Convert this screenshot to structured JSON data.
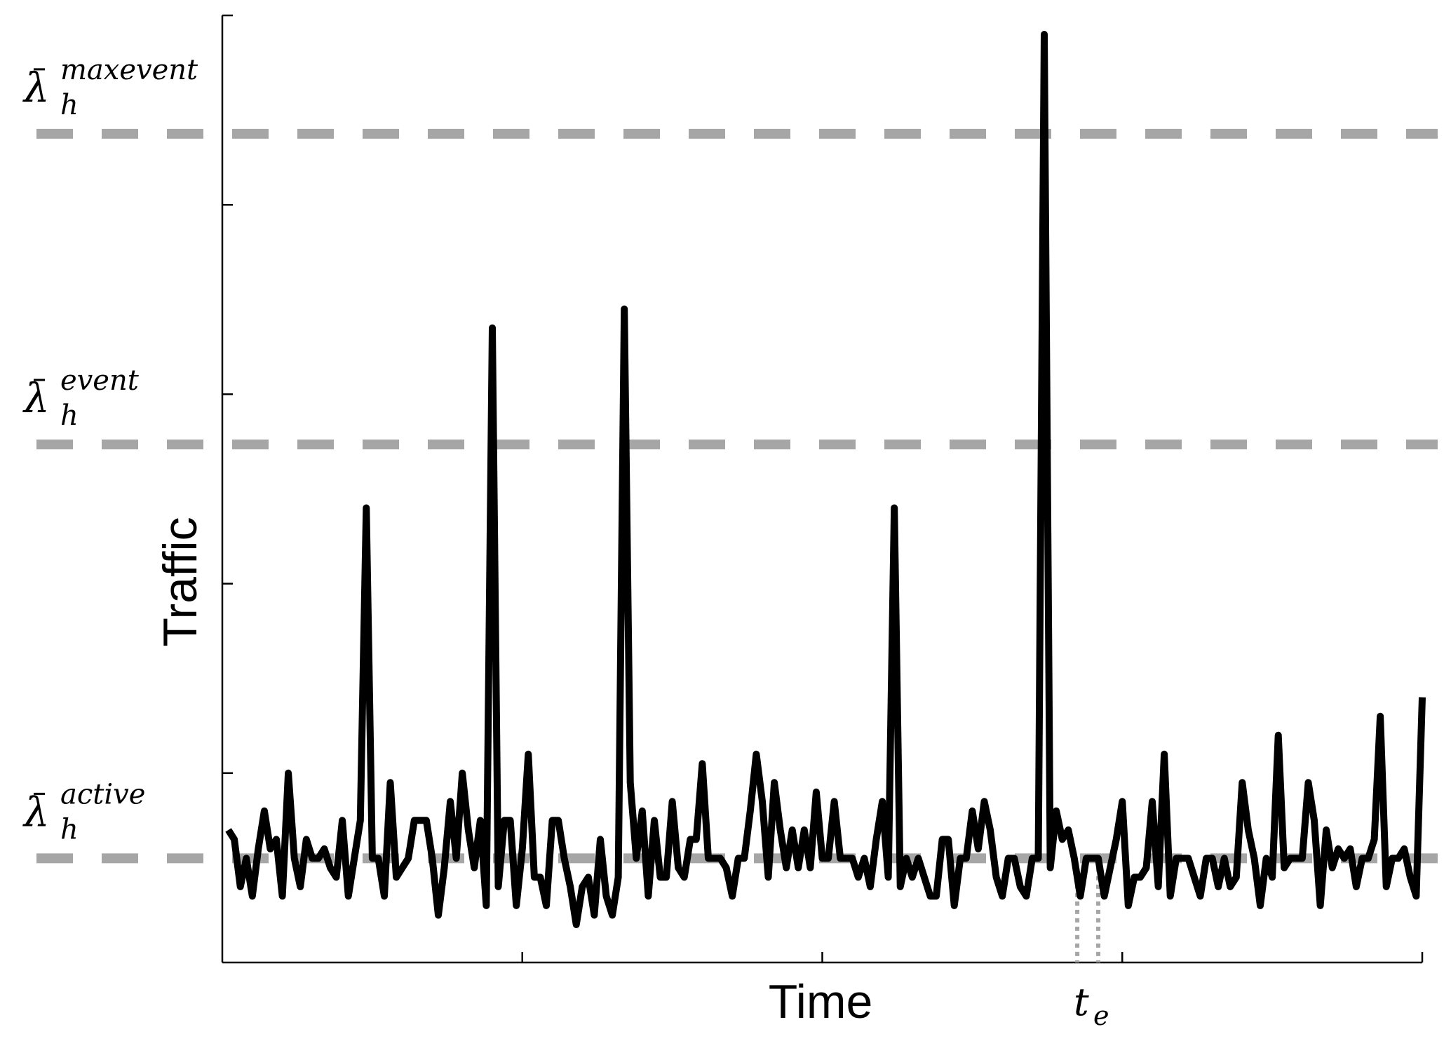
{
  "chart_data": {
    "type": "line",
    "xlabel": "Time",
    "ylabel": "Traffic",
    "xlim": [
      0,
      200
    ],
    "ylim": [
      0,
      100
    ],
    "x_ticks": [
      50,
      100,
      150,
      200
    ],
    "y_ticks": [
      20,
      40,
      60,
      80,
      100
    ],
    "grid": false,
    "reference_lines": [
      {
        "label_symbol": "λ",
        "label_sup": "maxevent",
        "label_sub": "h",
        "y": 87.5
      },
      {
        "label_symbol": "λ",
        "label_sup": "event",
        "label_sub": "h",
        "y": 54.7
      },
      {
        "label_symbol": "λ",
        "label_sup": "active",
        "label_sub": "h",
        "y": 11.0
      }
    ],
    "event_marker": {
      "label_main": "t",
      "label_sub": "e",
      "x_start": 142.5,
      "x_end": 146.0,
      "y_top": 10.0
    },
    "series": [
      {
        "values": [
          [
            1,
            14
          ],
          [
            2,
            13
          ],
          [
            3,
            8
          ],
          [
            4,
            11
          ],
          [
            5,
            7
          ],
          [
            6,
            12
          ],
          [
            7,
            16
          ],
          [
            8,
            12
          ],
          [
            9,
            13
          ],
          [
            10,
            7
          ],
          [
            11,
            20
          ],
          [
            12,
            11
          ],
          [
            13,
            8
          ],
          [
            14,
            13
          ],
          [
            15,
            11
          ],
          [
            16,
            11
          ],
          [
            17,
            12
          ],
          [
            18,
            10
          ],
          [
            19,
            9
          ],
          [
            20,
            15
          ],
          [
            21,
            7
          ],
          [
            22,
            11
          ],
          [
            23,
            15
          ],
          [
            24,
            48
          ],
          [
            25,
            11
          ],
          [
            26,
            11
          ],
          [
            27,
            7
          ],
          [
            28,
            19
          ],
          [
            29,
            9
          ],
          [
            30,
            10
          ],
          [
            31,
            11
          ],
          [
            32,
            15
          ],
          [
            33,
            15
          ],
          [
            34,
            15
          ],
          [
            35,
            11
          ],
          [
            36,
            5
          ],
          [
            37,
            10
          ],
          [
            38,
            17
          ],
          [
            39,
            11
          ],
          [
            40,
            20
          ],
          [
            41,
            14
          ],
          [
            42,
            10
          ],
          [
            43,
            15
          ],
          [
            44,
            6
          ],
          [
            45,
            67
          ],
          [
            46,
            8
          ],
          [
            47,
            15
          ],
          [
            48,
            15
          ],
          [
            49,
            6
          ],
          [
            50,
            12
          ],
          [
            51,
            22
          ],
          [
            52,
            9
          ],
          [
            53,
            9
          ],
          [
            54,
            6
          ],
          [
            55,
            15
          ],
          [
            56,
            15
          ],
          [
            57,
            11
          ],
          [
            58,
            8
          ],
          [
            59,
            4
          ],
          [
            60,
            8
          ],
          [
            61,
            9
          ],
          [
            62,
            5
          ],
          [
            63,
            13
          ],
          [
            64,
            7
          ],
          [
            65,
            5
          ],
          [
            66,
            9
          ],
          [
            67,
            69
          ],
          [
            68,
            19
          ],
          [
            69,
            11
          ],
          [
            70,
            16
          ],
          [
            71,
            7
          ],
          [
            72,
            15
          ],
          [
            73,
            9
          ],
          [
            74,
            9
          ],
          [
            75,
            17
          ],
          [
            76,
            10
          ],
          [
            77,
            9
          ],
          [
            78,
            13
          ],
          [
            79,
            13
          ],
          [
            80,
            21
          ],
          [
            81,
            11
          ],
          [
            82,
            11
          ],
          [
            83,
            11
          ],
          [
            84,
            10
          ],
          [
            85,
            7
          ],
          [
            86,
            11
          ],
          [
            87,
            11
          ],
          [
            88,
            16
          ],
          [
            89,
            22
          ],
          [
            90,
            17
          ],
          [
            91,
            9
          ],
          [
            92,
            19
          ],
          [
            93,
            14
          ],
          [
            94,
            10
          ],
          [
            95,
            14
          ],
          [
            96,
            10
          ],
          [
            97,
            14
          ],
          [
            98,
            10
          ],
          [
            99,
            18
          ],
          [
            100,
            11
          ],
          [
            101,
            11
          ],
          [
            102,
            17
          ],
          [
            103,
            11
          ],
          [
            104,
            11
          ],
          [
            105,
            11
          ],
          [
            106,
            9
          ],
          [
            107,
            11
          ],
          [
            108,
            8
          ],
          [
            109,
            13
          ],
          [
            110,
            17
          ],
          [
            111,
            9
          ],
          [
            112,
            48
          ],
          [
            113,
            8
          ],
          [
            114,
            11
          ],
          [
            115,
            9
          ],
          [
            116,
            11
          ],
          [
            117,
            9
          ],
          [
            118,
            7
          ],
          [
            119,
            7
          ],
          [
            120,
            13
          ],
          [
            121,
            13
          ],
          [
            122,
            6
          ],
          [
            123,
            11
          ],
          [
            124,
            11
          ],
          [
            125,
            16
          ],
          [
            126,
            12
          ],
          [
            127,
            17
          ],
          [
            128,
            14
          ],
          [
            129,
            9
          ],
          [
            130,
            7
          ],
          [
            131,
            11
          ],
          [
            132,
            11
          ],
          [
            133,
            8
          ],
          [
            134,
            7
          ],
          [
            135,
            11
          ],
          [
            136,
            11
          ],
          [
            137,
            98
          ],
          [
            138,
            10
          ],
          [
            139,
            16
          ],
          [
            140,
            13
          ],
          [
            141,
            14
          ],
          [
            142,
            11
          ],
          [
            143,
            7
          ],
          [
            144,
            11
          ],
          [
            145,
            11
          ],
          [
            146,
            11
          ],
          [
            147,
            7
          ],
          [
            148,
            10
          ],
          [
            149,
            13
          ],
          [
            150,
            17
          ],
          [
            151,
            6
          ],
          [
            152,
            9
          ],
          [
            153,
            9
          ],
          [
            154,
            10
          ],
          [
            155,
            17
          ],
          [
            156,
            8
          ],
          [
            157,
            22
          ],
          [
            158,
            7
          ],
          [
            159,
            11
          ],
          [
            160,
            11
          ],
          [
            161,
            11
          ],
          [
            162,
            9
          ],
          [
            163,
            7
          ],
          [
            164,
            11
          ],
          [
            165,
            11
          ],
          [
            166,
            8
          ],
          [
            167,
            11
          ],
          [
            168,
            8
          ],
          [
            169,
            9
          ],
          [
            170,
            19
          ],
          [
            171,
            14
          ],
          [
            172,
            11
          ],
          [
            173,
            6
          ],
          [
            174,
            11
          ],
          [
            175,
            9
          ],
          [
            176,
            24
          ],
          [
            177,
            10
          ],
          [
            178,
            11
          ],
          [
            179,
            11
          ],
          [
            180,
            11
          ],
          [
            181,
            19
          ],
          [
            182,
            15
          ],
          [
            183,
            6
          ],
          [
            184,
            14
          ],
          [
            185,
            10
          ],
          [
            186,
            12
          ],
          [
            187,
            11
          ],
          [
            188,
            12
          ],
          [
            189,
            8
          ],
          [
            190,
            11
          ],
          [
            191,
            11
          ],
          [
            192,
            13
          ],
          [
            193,
            26
          ],
          [
            194,
            8
          ],
          [
            195,
            11
          ],
          [
            196,
            11
          ],
          [
            197,
            12
          ],
          [
            198,
            9
          ],
          [
            199,
            7
          ],
          [
            200,
            28
          ]
        ]
      }
    ]
  }
}
